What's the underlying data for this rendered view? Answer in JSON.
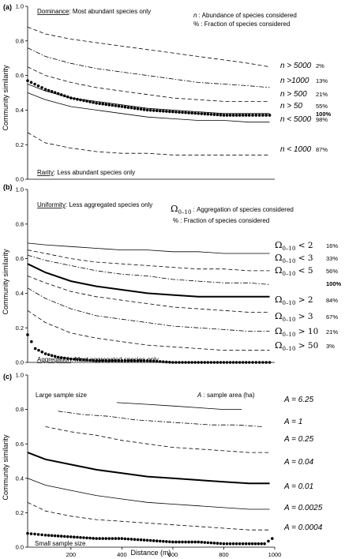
{
  "chart_data": [
    {
      "panel_label": "(a)",
      "type": "line",
      "ylabel": "Community similarity",
      "ylim": [
        0,
        1.0
      ],
      "xlim": [
        30,
        1000
      ],
      "yticks": [
        "0.0",
        "0.2",
        "0.4",
        "0.6",
        "0.8",
        "1.0"
      ],
      "annotations": {
        "top_left_title": "Dominance",
        "top_left_sub": ": Most abundant species only",
        "bottom_left_title": "Rarity",
        "bottom_left_sub": ": Less abundant species only",
        "legend_line1_sym": "n",
        "legend_line1_text": " : Abundance of species considered",
        "legend_line2": "% : Fraction of species considered"
      },
      "series": [
        {
          "name": "n > 5000",
          "pct": "2%",
          "bold": false,
          "style": "dashed",
          "x": [
            30,
            100,
            200,
            300,
            400,
            500,
            600,
            700,
            800,
            900,
            980
          ],
          "values": [
            0.88,
            0.84,
            0.81,
            0.79,
            0.77,
            0.75,
            0.73,
            0.71,
            0.69,
            0.67,
            0.65
          ]
        },
        {
          "name": "n >1000",
          "pct": "13%",
          "bold": false,
          "style": "dashdot",
          "x": [
            30,
            100,
            200,
            300,
            400,
            500,
            600,
            700,
            800,
            900,
            980
          ],
          "values": [
            0.76,
            0.71,
            0.67,
            0.64,
            0.62,
            0.6,
            0.58,
            0.56,
            0.55,
            0.54,
            0.53
          ]
        },
        {
          "name": "n > 500",
          "pct": "21%",
          "bold": false,
          "style": "dashed",
          "x": [
            30,
            100,
            200,
            300,
            400,
            500,
            600,
            700,
            800,
            900,
            980
          ],
          "values": [
            0.65,
            0.6,
            0.56,
            0.53,
            0.51,
            0.49,
            0.47,
            0.46,
            0.45,
            0.45,
            0.45
          ]
        },
        {
          "name": "n > 50",
          "pct": "55%",
          "bold": false,
          "style": "solid",
          "x": [
            30,
            100,
            200,
            300,
            400,
            500,
            600,
            700,
            800,
            900,
            980
          ],
          "values": [
            0.55,
            0.51,
            0.47,
            0.45,
            0.43,
            0.41,
            0.4,
            0.39,
            0.38,
            0.38,
            0.38
          ]
        },
        {
          "name": "",
          "pct": "100%",
          "bold": true,
          "style": "dotted-thick",
          "x": [
            30,
            100,
            200,
            300,
            400,
            500,
            600,
            700,
            800,
            900,
            980
          ],
          "values": [
            0.57,
            0.52,
            0.47,
            0.44,
            0.42,
            0.4,
            0.39,
            0.38,
            0.37,
            0.37,
            0.37
          ]
        },
        {
          "name": "n < 5000",
          "pct": "98%",
          "bold": false,
          "style": "solid",
          "x": [
            30,
            100,
            200,
            300,
            400,
            500,
            600,
            700,
            800,
            900,
            980
          ],
          "values": [
            0.5,
            0.46,
            0.42,
            0.4,
            0.38,
            0.36,
            0.35,
            0.34,
            0.34,
            0.33,
            0.33
          ]
        },
        {
          "name": "n < 1000",
          "pct": "87%",
          "bold": false,
          "style": "dashed",
          "x": [
            30,
            100,
            200,
            300,
            400,
            500,
            600,
            700,
            800,
            900,
            980
          ],
          "values": [
            0.27,
            0.21,
            0.18,
            0.16,
            0.15,
            0.15,
            0.14,
            0.14,
            0.14,
            0.14,
            0.14
          ]
        }
      ]
    },
    {
      "panel_label": "(b)",
      "type": "line",
      "ylabel": "Community similarity",
      "ylim": [
        0,
        1.0
      ],
      "xlim": [
        30,
        1000
      ],
      "yticks": [
        "0.0",
        "0.2",
        "0.4",
        "0.6",
        "0.8",
        "1.0"
      ],
      "annotations": {
        "top_left_title": "Uniformity",
        "top_left_sub": ": Less aggregated species only",
        "bottom_left_title": "Aggregation",
        "bottom_left_sub": ": Most aggregated species only",
        "legend_omega_sub": "0–10",
        "legend_line1_text": " : Aggregation of species considered",
        "legend_line2": "% : Fraction of species considered"
      },
      "series": [
        {
          "name": "Ω0–10 < 2",
          "rel": "< 2",
          "pct": "16%",
          "bold": false,
          "style": "solid",
          "x": [
            30,
            100,
            200,
            300,
            400,
            500,
            600,
            700,
            800,
            900,
            980
          ],
          "values": [
            0.69,
            0.68,
            0.67,
            0.66,
            0.65,
            0.65,
            0.64,
            0.64,
            0.63,
            0.63,
            0.63
          ]
        },
        {
          "name": "Ω0–10 < 3",
          "rel": "< 3",
          "pct": "33%",
          "bold": false,
          "style": "dashed",
          "x": [
            30,
            100,
            200,
            300,
            400,
            500,
            600,
            700,
            800,
            900,
            980
          ],
          "values": [
            0.65,
            0.63,
            0.6,
            0.58,
            0.57,
            0.56,
            0.55,
            0.54,
            0.54,
            0.53,
            0.53
          ]
        },
        {
          "name": "Ω0–10 < 5",
          "rel": "< 5",
          "pct": "56%",
          "bold": false,
          "style": "dashdot",
          "x": [
            30,
            100,
            200,
            300,
            400,
            500,
            600,
            700,
            800,
            900,
            980
          ],
          "values": [
            0.62,
            0.59,
            0.56,
            0.53,
            0.51,
            0.5,
            0.48,
            0.47,
            0.46,
            0.46,
            0.45
          ]
        },
        {
          "name": "",
          "rel": "",
          "pct": "100%",
          "bold": true,
          "style": "solid-thick",
          "x": [
            30,
            100,
            200,
            300,
            400,
            500,
            600,
            700,
            800,
            900,
            980
          ],
          "values": [
            0.57,
            0.52,
            0.47,
            0.44,
            0.42,
            0.4,
            0.39,
            0.38,
            0.38,
            0.38,
            0.38
          ]
        },
        {
          "name": "Ω0–10 > 2",
          "rel": "> 2",
          "pct": "84%",
          "bold": false,
          "style": "dashed",
          "x": [
            30,
            100,
            200,
            300,
            400,
            500,
            600,
            700,
            800,
            900,
            980
          ],
          "values": [
            0.5,
            0.46,
            0.41,
            0.38,
            0.36,
            0.34,
            0.32,
            0.31,
            0.3,
            0.29,
            0.29
          ]
        },
        {
          "name": "Ω0–10 > 3",
          "rel": "> 3",
          "pct": "67%",
          "bold": false,
          "style": "dashdot",
          "x": [
            30,
            100,
            200,
            300,
            400,
            500,
            600,
            700,
            800,
            900,
            980
          ],
          "values": [
            0.43,
            0.37,
            0.31,
            0.27,
            0.25,
            0.23,
            0.21,
            0.2,
            0.19,
            0.18,
            0.18
          ]
        },
        {
          "name": "Ω0–10 > 10",
          "rel": "> 10",
          "pct": "21%",
          "bold": false,
          "style": "dashed",
          "x": [
            30,
            100,
            200,
            300,
            400,
            500,
            600,
            700,
            800,
            900,
            980
          ],
          "values": [
            0.3,
            0.23,
            0.17,
            0.14,
            0.12,
            0.1,
            0.09,
            0.08,
            0.07,
            0.07,
            0.07
          ]
        },
        {
          "name": "Ω0–10 > 50",
          "rel": "> 50",
          "pct": "3%",
          "bold": false,
          "style": "dotted-thick",
          "x": [
            30,
            60,
            100,
            150,
            200,
            300,
            400,
            500,
            600,
            700,
            800,
            900,
            980
          ],
          "values": [
            0.16,
            0.08,
            0.05,
            0.03,
            0.02,
            0.01,
            0.01,
            0.01,
            0.0,
            0.0,
            0.0,
            0.0,
            0.0
          ]
        }
      ]
    },
    {
      "panel_label": "(c)",
      "type": "line",
      "ylabel": "Community similarity",
      "xlabel": "Distance (m)",
      "ylim": [
        0,
        1.0
      ],
      "xlim": [
        30,
        1000
      ],
      "yticks": [
        "0.0",
        "0.2",
        "0.4",
        "0.6",
        "0.8",
        "1.0"
      ],
      "xticks": [
        200,
        400,
        600,
        800,
        1000
      ],
      "xtick_labels": [
        "200",
        "400",
        "600",
        "800",
        "1000"
      ],
      "annotations": {
        "top_left": "Large sample size",
        "bottom_left": "Small sample size",
        "legend_sym": "A",
        "legend_text": " : sample area (ha)"
      },
      "series": [
        {
          "name": "A = 6.25",
          "bold": false,
          "style": "solid",
          "x": [
            380,
            500,
            600,
            700,
            800,
            870
          ],
          "values": [
            0.84,
            0.83,
            0.82,
            0.81,
            0.8,
            0.8
          ]
        },
        {
          "name": "A = 1",
          "bold": false,
          "style": "dashdot",
          "x": [
            150,
            250,
            350,
            450,
            550,
            650,
            750,
            850,
            950
          ],
          "values": [
            0.79,
            0.77,
            0.76,
            0.74,
            0.73,
            0.72,
            0.71,
            0.71,
            0.7
          ]
        },
        {
          "name": "A = 0.25",
          "bold": false,
          "style": "dashed",
          "x": [
            100,
            200,
            300,
            400,
            500,
            600,
            700,
            800,
            900,
            980
          ],
          "values": [
            0.7,
            0.67,
            0.65,
            0.62,
            0.6,
            0.58,
            0.57,
            0.56,
            0.55,
            0.55
          ]
        },
        {
          "name": "A = 0.04",
          "bold": false,
          "style": "solid-thick",
          "x": [
            30,
            100,
            200,
            300,
            400,
            500,
            600,
            700,
            800,
            900,
            980
          ],
          "values": [
            0.55,
            0.51,
            0.48,
            0.45,
            0.43,
            0.41,
            0.4,
            0.39,
            0.38,
            0.37,
            0.37
          ]
        },
        {
          "name": "A = 0.01",
          "bold": false,
          "style": "solid",
          "x": [
            30,
            100,
            200,
            300,
            400,
            500,
            600,
            700,
            800,
            900,
            980
          ],
          "values": [
            0.4,
            0.36,
            0.33,
            0.3,
            0.28,
            0.26,
            0.25,
            0.24,
            0.23,
            0.22,
            0.22
          ]
        },
        {
          "name": "A = 0.0025",
          "bold": false,
          "style": "dashed",
          "x": [
            30,
            100,
            200,
            300,
            400,
            500,
            600,
            700,
            800,
            900,
            980
          ],
          "values": [
            0.26,
            0.21,
            0.18,
            0.16,
            0.15,
            0.14,
            0.13,
            0.12,
            0.11,
            0.1,
            0.1
          ]
        },
        {
          "name": "A = 0.0004",
          "bold": false,
          "style": "dotted-thick",
          "x": [
            30,
            100,
            200,
            300,
            400,
            500,
            600,
            700,
            800,
            900,
            960,
            990
          ],
          "values": [
            0.08,
            0.07,
            0.06,
            0.05,
            0.05,
            0.04,
            0.03,
            0.03,
            0.02,
            0.02,
            0.02,
            0.05
          ]
        }
      ]
    }
  ],
  "colors": {
    "ink": "#000000",
    "background": "#ffffff"
  }
}
